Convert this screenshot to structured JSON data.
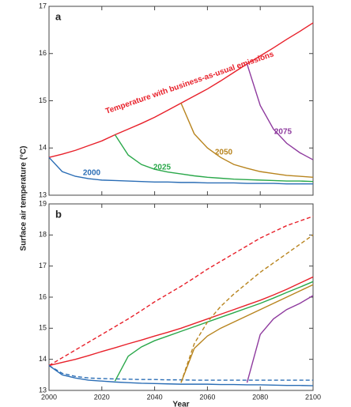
{
  "chart_data": [
    {
      "type": "line",
      "panel_label": "a",
      "ylabel": "Surface air temperature (°C)",
      "x": [
        2000,
        2005,
        2010,
        2015,
        2020,
        2025,
        2030,
        2035,
        2040,
        2045,
        2050,
        2055,
        2060,
        2065,
        2070,
        2075,
        2080,
        2085,
        2090,
        2095,
        2100
      ],
      "xlim": [
        2000,
        2100
      ],
      "xticks": [
        2000,
        2020,
        2040,
        2060,
        2080,
        2100
      ],
      "xtick_labels": false,
      "ylim": [
        13,
        17
      ],
      "yticks": [
        13,
        14,
        15,
        16,
        17
      ],
      "series": [
        {
          "name": "Temperature with business-as-usual emissions",
          "color": "#e8202a",
          "values": [
            13.8,
            13.87,
            13.95,
            14.05,
            14.15,
            14.28,
            14.4,
            14.52,
            14.65,
            14.8,
            14.95,
            15.1,
            15.25,
            15.42,
            15.6,
            15.78,
            15.95,
            16.12,
            16.3,
            16.47,
            16.65
          ]
        },
        {
          "name": "2000",
          "color": "#2a6db5",
          "values": [
            13.8,
            13.5,
            13.4,
            13.35,
            13.32,
            13.31,
            13.3,
            13.29,
            13.28,
            13.28,
            13.27,
            13.27,
            13.26,
            13.26,
            13.26,
            13.25,
            13.25,
            13.25,
            13.24,
            13.24,
            13.24
          ]
        },
        {
          "name": "2025",
          "color": "#2aa84a",
          "values": [
            null,
            null,
            null,
            null,
            null,
            14.28,
            13.85,
            13.65,
            13.55,
            13.49,
            13.45,
            13.41,
            13.38,
            13.36,
            13.34,
            13.33,
            13.32,
            13.31,
            13.3,
            13.3,
            13.29
          ]
        },
        {
          "name": "2050",
          "color": "#b8841e",
          "values": [
            null,
            null,
            null,
            null,
            null,
            null,
            null,
            null,
            null,
            null,
            14.95,
            14.3,
            14.0,
            13.8,
            13.65,
            13.57,
            13.5,
            13.46,
            13.42,
            13.4,
            13.38
          ]
        },
        {
          "name": "2075",
          "color": "#8e3a9e",
          "values": [
            null,
            null,
            null,
            null,
            null,
            null,
            null,
            null,
            null,
            null,
            null,
            null,
            null,
            null,
            null,
            15.78,
            14.9,
            14.4,
            14.1,
            13.9,
            13.75
          ]
        }
      ]
    },
    {
      "type": "line",
      "panel_label": "b",
      "xlabel": "Year",
      "x": [
        2000,
        2005,
        2010,
        2015,
        2020,
        2025,
        2030,
        2035,
        2040,
        2045,
        2050,
        2055,
        2060,
        2065,
        2070,
        2075,
        2080,
        2085,
        2090,
        2095,
        2100
      ],
      "xlim": [
        2000,
        2100
      ],
      "xticks": [
        2000,
        2020,
        2040,
        2060,
        2080,
        2100
      ],
      "ylim": [
        13,
        19
      ],
      "yticks": [
        13,
        14,
        15,
        16,
        17,
        18,
        19
      ],
      "series": [
        {
          "color": "#e8202a",
          "values": [
            13.8,
            13.9,
            14.0,
            14.12,
            14.25,
            14.37,
            14.5,
            14.62,
            14.75,
            14.87,
            15.0,
            15.15,
            15.3,
            15.45,
            15.6,
            15.75,
            15.9,
            16.07,
            16.25,
            16.45,
            16.65
          ]
        },
        {
          "color": "#e8202a",
          "dashed": true,
          "values": [
            13.8,
            14.05,
            14.3,
            14.55,
            14.8,
            15.05,
            15.3,
            15.57,
            15.85,
            16.1,
            16.35,
            16.62,
            16.9,
            17.15,
            17.4,
            17.65,
            17.9,
            18.1,
            18.3,
            18.45,
            18.6
          ]
        },
        {
          "color": "#2a6db5",
          "values": [
            13.8,
            13.5,
            13.4,
            13.33,
            13.3,
            13.27,
            13.25,
            13.23,
            13.22,
            13.21,
            13.2,
            13.2,
            13.2,
            13.19,
            13.19,
            13.18,
            13.18,
            13.17,
            13.16,
            13.16,
            13.15
          ]
        },
        {
          "color": "#2a6db5",
          "dashed": true,
          "values": [
            13.8,
            13.55,
            13.45,
            13.4,
            13.38,
            13.37,
            13.36,
            13.35,
            13.35,
            13.34,
            13.34,
            13.33,
            13.33,
            13.33,
            13.33,
            13.33,
            13.33,
            13.33,
            13.33,
            13.33,
            13.33
          ]
        },
        {
          "color": "#2aa84a",
          "values": [
            null,
            null,
            null,
            null,
            null,
            13.3,
            14.1,
            14.4,
            14.6,
            14.75,
            14.9,
            15.05,
            15.2,
            15.35,
            15.5,
            15.65,
            15.8,
            15.97,
            16.15,
            16.32,
            16.5
          ]
        },
        {
          "color": "#b8841e",
          "values": [
            null,
            null,
            null,
            null,
            null,
            null,
            null,
            null,
            null,
            null,
            13.25,
            14.35,
            14.75,
            15.0,
            15.2,
            15.4,
            15.6,
            15.8,
            16.0,
            16.2,
            16.4
          ]
        },
        {
          "color": "#b8841e",
          "dashed": true,
          "values": [
            null,
            null,
            null,
            null,
            null,
            null,
            null,
            null,
            null,
            null,
            13.25,
            14.5,
            15.2,
            15.7,
            16.1,
            16.45,
            16.8,
            17.1,
            17.4,
            17.7,
            18.0
          ]
        },
        {
          "color": "#8e3a9e",
          "values": [
            null,
            null,
            null,
            null,
            null,
            null,
            null,
            null,
            null,
            null,
            null,
            null,
            null,
            null,
            null,
            13.25,
            14.8,
            15.3,
            15.6,
            15.8,
            16.05
          ]
        }
      ]
    }
  ]
}
